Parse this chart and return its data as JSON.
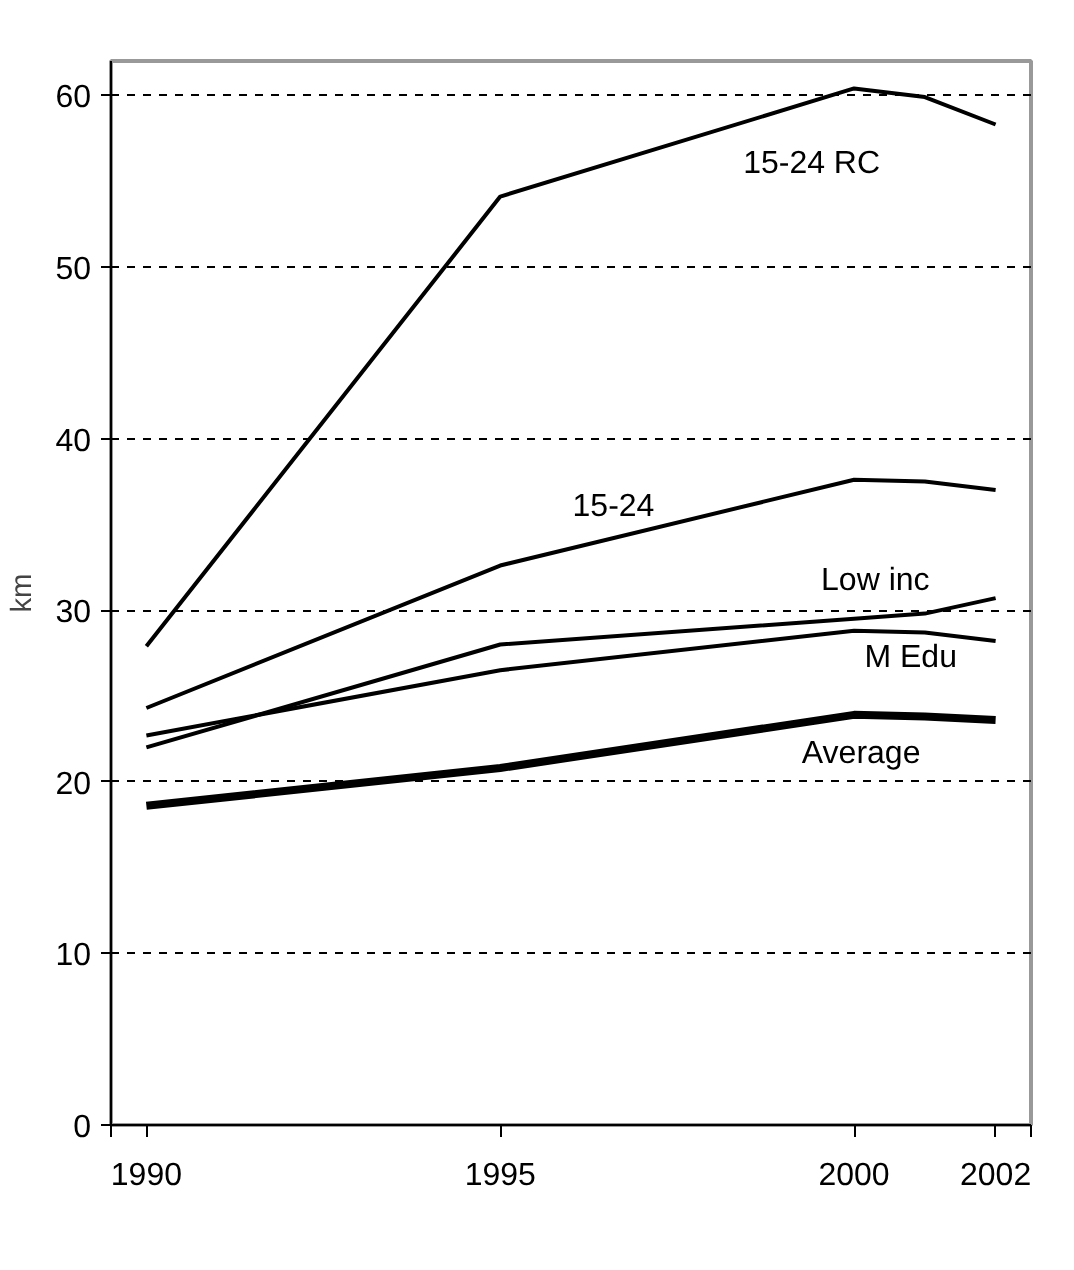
{
  "chart_data": {
    "type": "line",
    "ylabel": "km",
    "x": [
      1990,
      1995,
      2000,
      2001,
      2002
    ],
    "series": [
      {
        "name": "15-24 RC",
        "color": "#000000",
        "values": [
          27.9,
          54.1,
          60.4,
          59.9,
          58.3
        ]
      },
      {
        "name": "15-24",
        "color": "#000000",
        "values": [
          24.3,
          32.6,
          37.6,
          37.5,
          37.0
        ]
      },
      {
        "name": "Low inc",
        "color": "#000000",
        "values": [
          22.0,
          28.0,
          29.5,
          29.8,
          30.7
        ]
      },
      {
        "name": "M Edu",
        "color": "#000000",
        "values": [
          22.7,
          26.5,
          28.8,
          28.7,
          28.2
        ]
      },
      {
        "name": "Average",
        "color": "#000000",
        "values": [
          18.6,
          20.8,
          23.9,
          23.8,
          23.6
        ]
      }
    ],
    "xlim": [
      1989.5,
      2002.5
    ],
    "xticks": [
      {
        "value": 1989.5,
        "label": null
      },
      1990,
      1995,
      2000,
      2002,
      {
        "value": 2002.5,
        "label": null
      }
    ],
    "ylim": [
      0,
      62
    ],
    "yticks": [
      0,
      10,
      20,
      30,
      40,
      50,
      60
    ],
    "grid": "y",
    "legend": false,
    "marker": "none",
    "line_style": "solid"
  }
}
